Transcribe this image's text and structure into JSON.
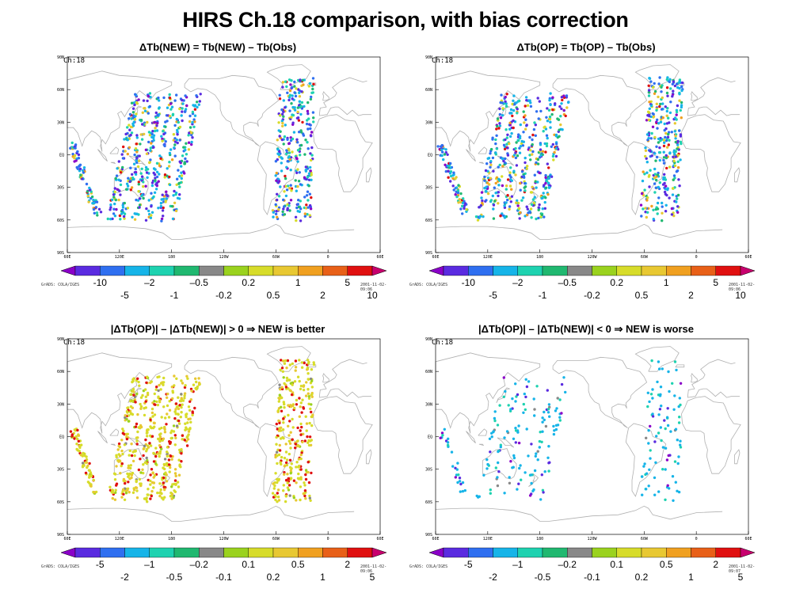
{
  "title": "HIRS Ch.18 comparison, with bias correction",
  "credit": "GrADS: COLA/IGES",
  "panels": [
    {
      "title": "ΔTb(NEW) = Tb(NEW) – Tb(Obs)",
      "channel": "Ch:18",
      "timestamp": "2001-11-02-09:06",
      "colorbar": {
        "colors": [
          "#8a00c8",
          "#5a2be0",
          "#2f6ff0",
          "#16b4e8",
          "#1ed2b0",
          "#20b870",
          "#888888",
          "#9ad21e",
          "#d7dc2a",
          "#e8c832",
          "#f0a020",
          "#e86018",
          "#e01010",
          "#c8006e"
        ],
        "labels_top": [
          "-10",
          "–2",
          "–0.5",
          "0.2",
          "1",
          "5"
        ],
        "labels_bottom": [
          "-5",
          "-1",
          "-0.2",
          "0.5",
          "2",
          "10"
        ]
      },
      "scheme": "full"
    },
    {
      "title": "ΔTb(OP) = Tb(OP) – Tb(Obs)",
      "channel": "Ch:18",
      "timestamp": "2001-11-02-09:06",
      "colorbar": {
        "colors": [
          "#8a00c8",
          "#5a2be0",
          "#2f6ff0",
          "#16b4e8",
          "#1ed2b0",
          "#20b870",
          "#888888",
          "#9ad21e",
          "#d7dc2a",
          "#e8c832",
          "#f0a020",
          "#e86018",
          "#e01010",
          "#c8006e"
        ],
        "labels_top": [
          "-10",
          "–2",
          "–0.5",
          "0.2",
          "1",
          "5"
        ],
        "labels_bottom": [
          "-5",
          "-1",
          "-0.2",
          "0.5",
          "2",
          "10"
        ]
      },
      "scheme": "full"
    },
    {
      "title": "|ΔTb(OP)| –  |ΔTb(NEW)|  > 0 ⇒ NEW is better",
      "channel": "Ch:18",
      "timestamp": "2001-11-02-09:06",
      "colorbar": {
        "colors": [
          "#8a00c8",
          "#5a2be0",
          "#2f6ff0",
          "#16b4e8",
          "#1ed2b0",
          "#20b870",
          "#888888",
          "#9ad21e",
          "#d7dc2a",
          "#e8c832",
          "#f0a020",
          "#e86018",
          "#e01010",
          "#c8006e"
        ],
        "labels_top": [
          "-5",
          "–1",
          "–0.2",
          "0.1",
          "0.5",
          "2"
        ],
        "labels_bottom": [
          "-2",
          "-0.5",
          "-0.1",
          "0.2",
          "1",
          "5"
        ]
      },
      "scheme": "better"
    },
    {
      "title": "|ΔTb(OP)| –  |ΔTb(NEW)|  < 0 ⇒ NEW is worse",
      "channel": "Ch:18",
      "timestamp": "2001-11-02-09:07",
      "colorbar": {
        "colors": [
          "#8a00c8",
          "#5a2be0",
          "#2f6ff0",
          "#16b4e8",
          "#1ed2b0",
          "#20b870",
          "#888888",
          "#9ad21e",
          "#d7dc2a",
          "#e8c832",
          "#f0a020",
          "#e86018",
          "#e01010",
          "#c8006e"
        ],
        "labels_top": [
          "-5",
          "–1",
          "–0.2",
          "0.1",
          "0.5",
          "2"
        ],
        "labels_bottom": [
          "-2",
          "-0.5",
          "-0.1",
          "0.2",
          "1",
          "5"
        ]
      },
      "scheme": "worse"
    }
  ],
  "axes": {
    "lat_labels": [
      "90N",
      "60N",
      "30N",
      "EQ",
      "30S",
      "60S",
      "90S"
    ],
    "lon_labels": [
      "60E",
      "120E",
      "180",
      "120W",
      "60W",
      "0",
      "60E"
    ]
  }
}
